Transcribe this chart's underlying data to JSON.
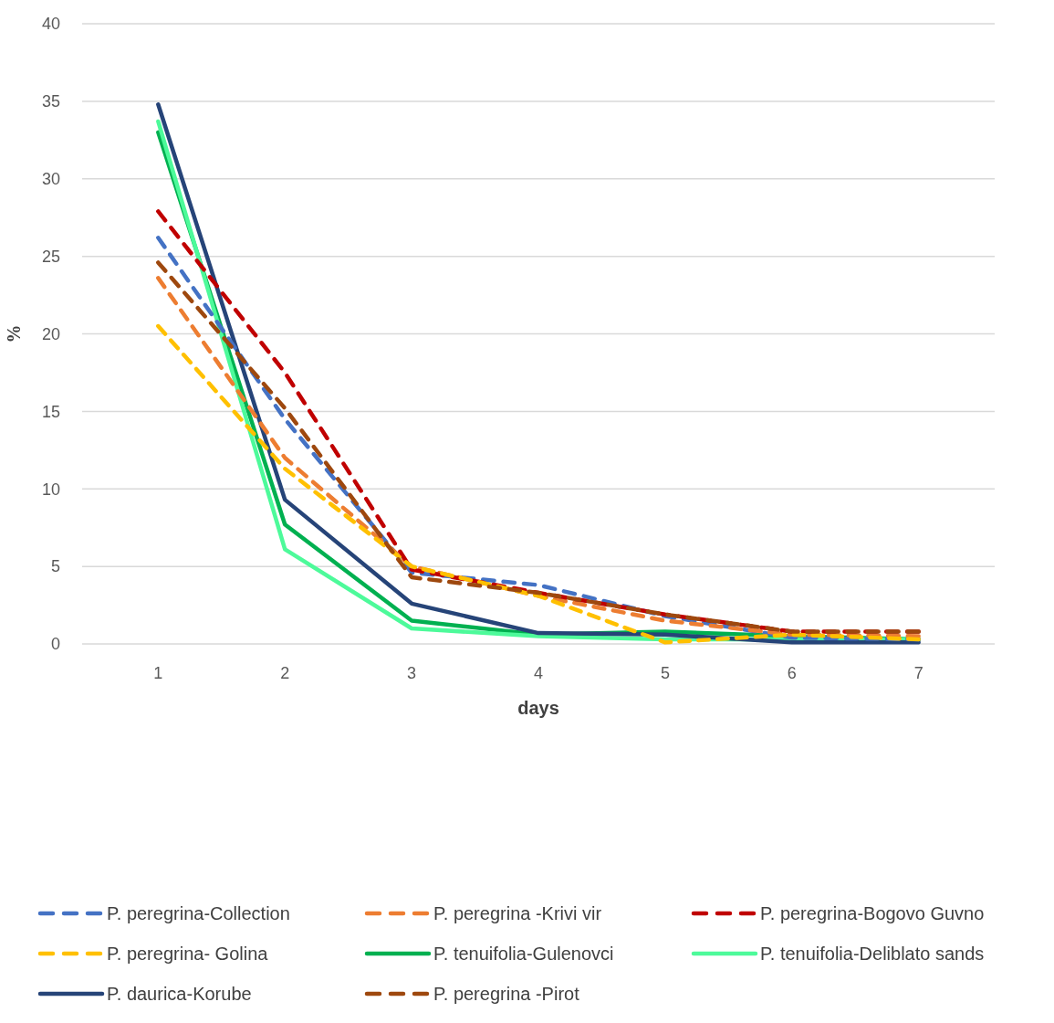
{
  "chart_data": {
    "type": "line",
    "xlabel": "days",
    "ylabel": "%",
    "categories": [
      "1",
      "2",
      "3",
      "4",
      "5",
      "6",
      "7"
    ],
    "ylim": [
      0,
      40
    ],
    "yticks": [
      0,
      5,
      10,
      15,
      20,
      25,
      30,
      35,
      40
    ],
    "grid": "y",
    "legend": "bottom",
    "marker": "none",
    "series": [
      {
        "name": "P. peregrina-Collection",
        "color": "#4472c4",
        "line_style": "dashed",
        "values": [
          26.2,
          14.5,
          4.6,
          3.8,
          1.8,
          0.4,
          0.3
        ]
      },
      {
        "name": "P. peregrina -Krivi vir",
        "color": "#ed7d31",
        "line_style": "dashed",
        "values": [
          23.6,
          12.0,
          5.0,
          3.1,
          1.5,
          0.6,
          0.5
        ]
      },
      {
        "name": "P. peregrina-Bogovo Guvno",
        "color": "#c00000",
        "line_style": "dashed",
        "values": [
          27.9,
          17.5,
          4.8,
          3.3,
          1.9,
          0.8,
          0.8
        ]
      },
      {
        "name": "P. peregrina- Golina",
        "color": "#ffc000",
        "line_style": "dashed",
        "values": [
          20.5,
          11.3,
          5.0,
          3.1,
          0.1,
          0.6,
          0.3
        ]
      },
      {
        "name": "P. tenuifolia-Gulenovci",
        "color": "#00b050",
        "line_style": "solid",
        "values": [
          33.0,
          7.7,
          1.5,
          0.6,
          0.8,
          0.5,
          0.3
        ]
      },
      {
        "name": "P. tenuifolia-Deliblato sands",
        "color": "#4dfa9a",
        "line_style": "solid",
        "values": [
          33.7,
          6.1,
          1.0,
          0.5,
          0.3,
          0.3,
          0.3
        ]
      },
      {
        "name": "P. daurica-Korube",
        "color": "#264478",
        "line_style": "solid",
        "values": [
          34.8,
          9.3,
          2.6,
          0.7,
          0.6,
          0.1,
          0.1
        ]
      },
      {
        "name": "P. peregrina -Pirot",
        "color": "#9e480e",
        "line_style": "dashed",
        "values": [
          24.6,
          15.2,
          4.3,
          3.3,
          1.9,
          0.8,
          0.8
        ]
      }
    ]
  }
}
